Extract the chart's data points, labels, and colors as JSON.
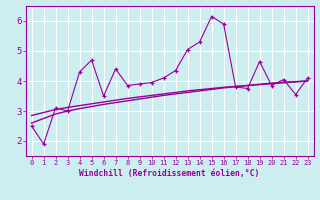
{
  "xlabel": "Windchill (Refroidissement éolien,°C)",
  "bg_color": "#cceef0",
  "line_color": "#990099",
  "grid_color": "#aadddd",
  "xlim": [
    -0.5,
    23.5
  ],
  "ylim": [
    1.5,
    6.5
  ],
  "xticks": [
    0,
    1,
    2,
    3,
    4,
    5,
    6,
    7,
    8,
    9,
    10,
    11,
    12,
    13,
    14,
    15,
    16,
    17,
    18,
    19,
    20,
    21,
    22,
    23
  ],
  "yticks": [
    2,
    3,
    4,
    5,
    6
  ],
  "data_x": [
    0,
    1,
    2,
    3,
    4,
    5,
    6,
    7,
    8,
    9,
    10,
    11,
    12,
    13,
    14,
    15,
    16,
    17,
    18,
    19,
    20,
    21,
    22,
    23
  ],
  "data_y": [
    2.5,
    1.9,
    3.1,
    3.0,
    4.3,
    4.7,
    3.5,
    4.4,
    3.85,
    3.9,
    3.95,
    4.1,
    4.35,
    5.05,
    5.3,
    6.15,
    5.9,
    3.8,
    3.75,
    4.65,
    3.85,
    4.05,
    3.55,
    4.1
  ],
  "smooth1_y": [
    2.6,
    2.75,
    2.9,
    3.0,
    3.08,
    3.15,
    3.22,
    3.28,
    3.34,
    3.4,
    3.46,
    3.52,
    3.57,
    3.62,
    3.67,
    3.72,
    3.77,
    3.81,
    3.85,
    3.89,
    3.93,
    3.96,
    3.98,
    4.0
  ],
  "smooth2_y": [
    2.85,
    2.95,
    3.05,
    3.12,
    3.18,
    3.24,
    3.3,
    3.36,
    3.42,
    3.47,
    3.52,
    3.57,
    3.62,
    3.67,
    3.71,
    3.75,
    3.79,
    3.82,
    3.85,
    3.88,
    3.91,
    3.94,
    3.97,
    4.0
  ]
}
